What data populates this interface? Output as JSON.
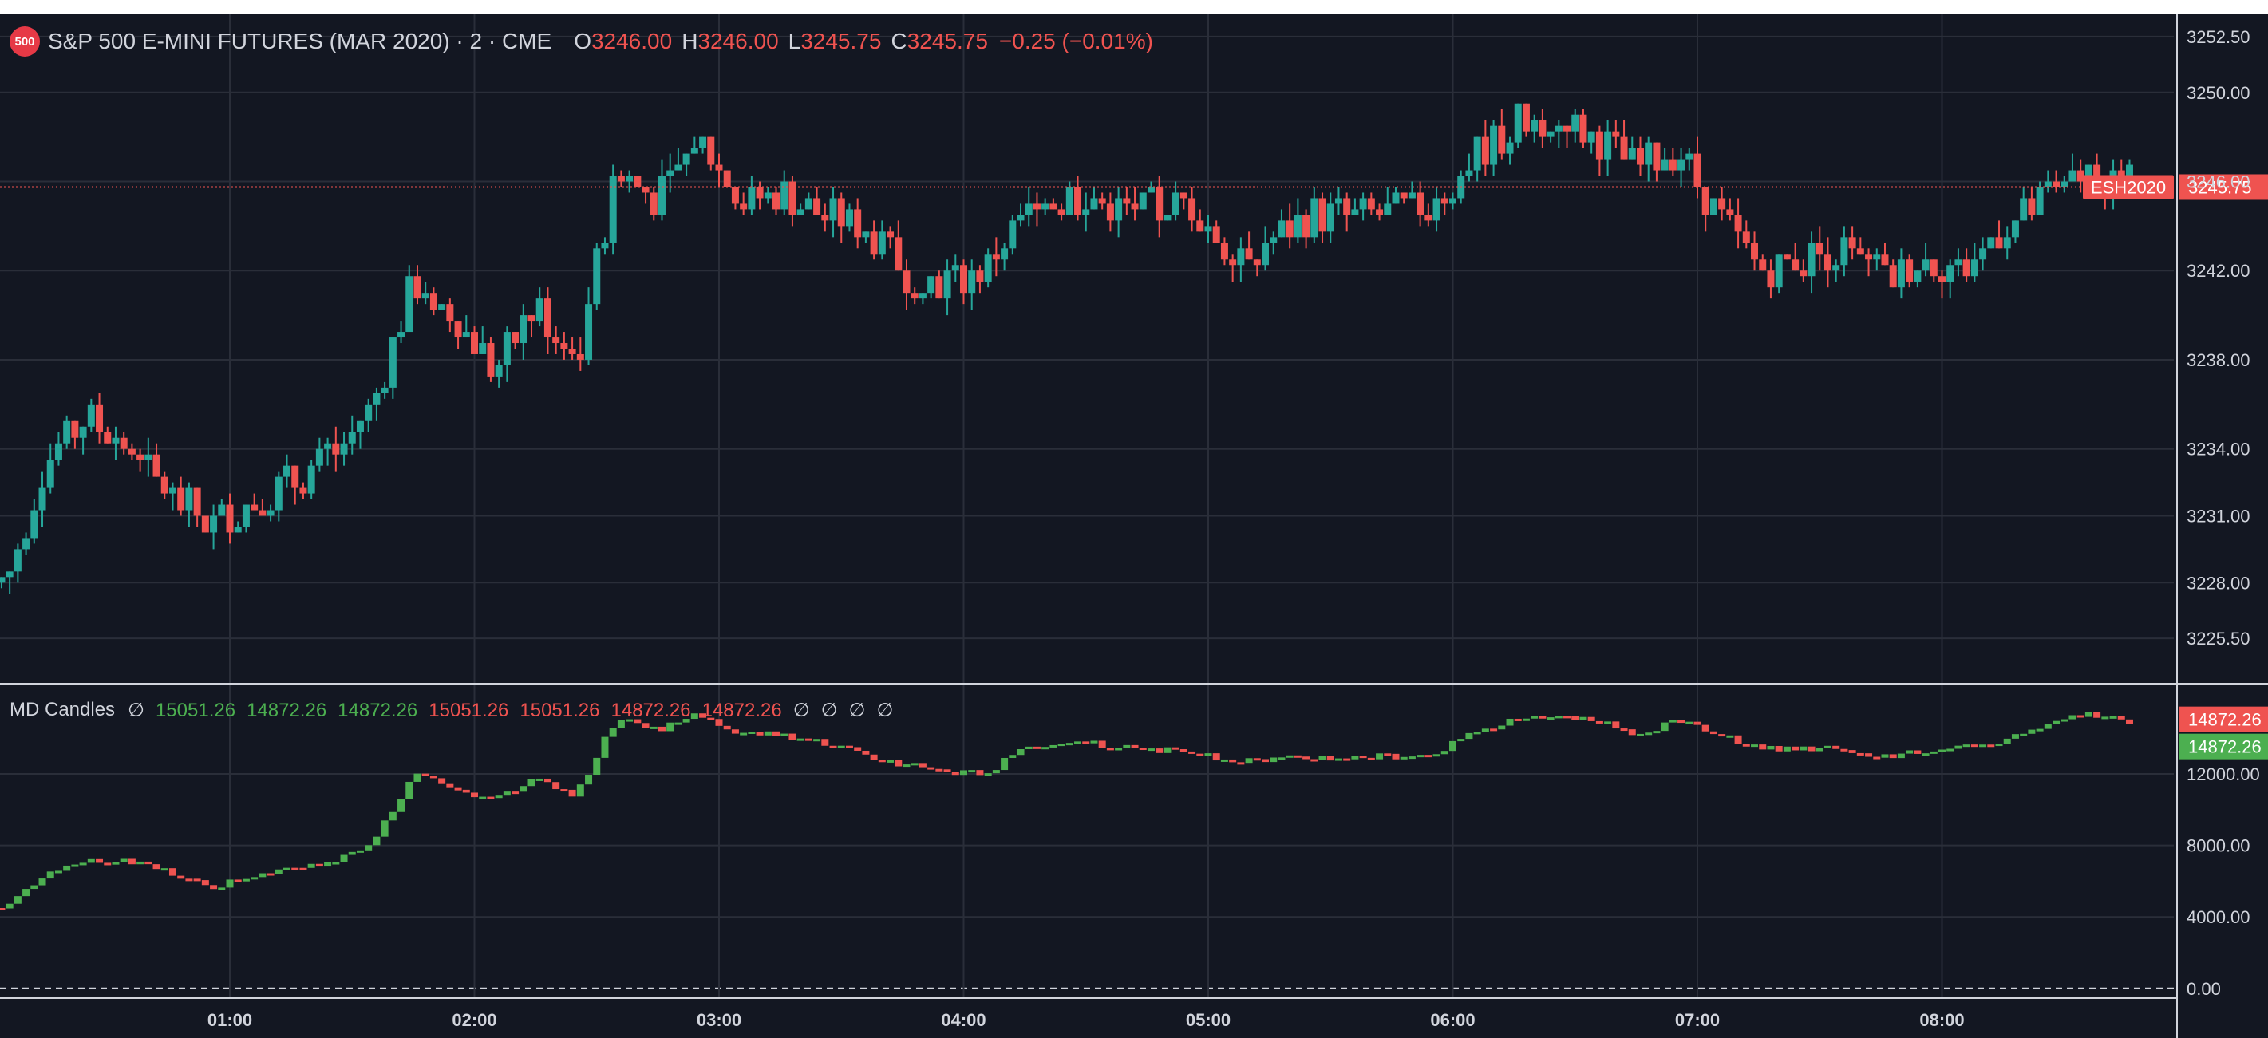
{
  "symbol": {
    "badge": "500",
    "title": "S&P 500 E-MINI FUTURES (MAR 2020) · 2 · CME",
    "ohlc": [
      {
        "key": "O",
        "value": "3246.00"
      },
      {
        "key": "H",
        "value": "3246.00"
      },
      {
        "key": "L",
        "value": "3245.75"
      },
      {
        "key": "C",
        "value": "3245.75"
      }
    ],
    "change": "−0.25 (−0.01%)",
    "ticker_badge": "ESH2020",
    "last_price_label": "3245.75"
  },
  "indicator": {
    "name": "MD Candles",
    "values": [
      {
        "text": "∅",
        "tone": "na"
      },
      {
        "text": "15051.26",
        "tone": "upg"
      },
      {
        "text": "14872.26",
        "tone": "upg"
      },
      {
        "text": "14872.26",
        "tone": "upg"
      },
      {
        "text": "15051.26",
        "tone": "dn"
      },
      {
        "text": "15051.26",
        "tone": "dn"
      },
      {
        "text": "14872.26",
        "tone": "dn"
      },
      {
        "text": "14872.26",
        "tone": "dn"
      },
      {
        "text": "∅",
        "tone": "na"
      },
      {
        "text": "∅",
        "tone": "na"
      },
      {
        "text": "∅",
        "tone": "na"
      },
      {
        "text": "∅",
        "tone": "na"
      }
    ],
    "last_labels": [
      {
        "text": "14872.26",
        "color": "#ef5350"
      },
      {
        "text": "14872.26",
        "color": "#4caf50"
      }
    ]
  },
  "colors": {
    "background": "#131722",
    "grid": "#2a2e39",
    "up": "#26a69a",
    "down": "#ef5350",
    "md_up": "#4caf50",
    "md_down": "#ef5350"
  },
  "chart_data": [
    {
      "type": "candlestick",
      "title": "S&P 500 E-MINI FUTURES (MAR 2020) · 2 · CME",
      "x_ticks": [
        "01:00",
        "02:00",
        "03:00",
        "04:00",
        "05:00",
        "06:00",
        "07:00",
        "08:00"
      ],
      "y_ticks": [
        "3252.50",
        "3250.00",
        "3246.00",
        "3242.00",
        "3238.00",
        "3234.00",
        "3231.00",
        "3228.00",
        "3225.50"
      ],
      "ylim": [
        3223.5,
        3253.5
      ],
      "last_price": 3245.75,
      "grid": true,
      "close_profile": [
        {
          "t": "00:05",
          "close": 3228.0
        },
        {
          "t": "00:15",
          "close": 3233.5
        },
        {
          "t": "00:25",
          "close": 3235.5
        },
        {
          "t": "00:35",
          "close": 3234.0
        },
        {
          "t": "00:45",
          "close": 3232.0
        },
        {
          "t": "00:55",
          "close": 3230.5
        },
        {
          "t": "01:05",
          "close": 3231.5
        },
        {
          "t": "01:15",
          "close": 3232.5
        },
        {
          "t": "01:25",
          "close": 3233.5
        },
        {
          "t": "01:35",
          "close": 3236.0
        },
        {
          "t": "01:45",
          "close": 3241.5
        },
        {
          "t": "01:55",
          "close": 3240.0
        },
        {
          "t": "02:05",
          "close": 3237.5
        },
        {
          "t": "02:15",
          "close": 3240.5
        },
        {
          "t": "02:25",
          "close": 3238.0
        },
        {
          "t": "02:35",
          "close": 3246.5
        },
        {
          "t": "02:45",
          "close": 3245.0
        },
        {
          "t": "02:55",
          "close": 3248.0
        },
        {
          "t": "03:05",
          "close": 3245.0
        },
        {
          "t": "03:15",
          "close": 3245.5
        },
        {
          "t": "03:25",
          "close": 3244.5
        },
        {
          "t": "03:35",
          "close": 3244.0
        },
        {
          "t": "03:45",
          "close": 3242.0
        },
        {
          "t": "03:55",
          "close": 3241.5
        },
        {
          "t": "04:05",
          "close": 3242.0
        },
        {
          "t": "04:15",
          "close": 3244.5
        },
        {
          "t": "04:25",
          "close": 3245.5
        },
        {
          "t": "04:35",
          "close": 3245.0
        },
        {
          "t": "04:45",
          "close": 3244.5
        },
        {
          "t": "04:55",
          "close": 3245.0
        },
        {
          "t": "05:05",
          "close": 3243.0
        },
        {
          "t": "05:15",
          "close": 3243.5
        },
        {
          "t": "05:25",
          "close": 3244.5
        },
        {
          "t": "05:35",
          "close": 3244.5
        },
        {
          "t": "05:45",
          "close": 3244.5
        },
        {
          "t": "05:55",
          "close": 3245.0
        },
        {
          "t": "06:05",
          "close": 3247.0
        },
        {
          "t": "06:15",
          "close": 3248.5
        },
        {
          "t": "06:25",
          "close": 3249.0
        },
        {
          "t": "06:35",
          "close": 3248.0
        },
        {
          "t": "06:45",
          "close": 3246.5
        },
        {
          "t": "06:55",
          "close": 3247.5
        },
        {
          "t": "07:05",
          "close": 3244.5
        },
        {
          "t": "07:15",
          "close": 3242.0
        },
        {
          "t": "07:25",
          "close": 3242.5
        },
        {
          "t": "07:35",
          "close": 3243.0
        },
        {
          "t": "07:45",
          "close": 3241.5
        },
        {
          "t": "07:55",
          "close": 3242.5
        },
        {
          "t": "08:05",
          "close": 3242.0
        },
        {
          "t": "08:15",
          "close": 3244.0
        },
        {
          "t": "08:25",
          "close": 3245.0
        },
        {
          "t": "08:35",
          "close": 3246.5
        },
        {
          "t": "08:45",
          "close": 3246.0
        }
      ]
    },
    {
      "type": "candlestick",
      "title": "MD Candles",
      "y_ticks": [
        "12000.00",
        "8000.00",
        "4000.00",
        "0.00"
      ],
      "ylim": [
        -500,
        17000
      ],
      "last_value": 14872.26,
      "grid": true,
      "close_profile": [
        {
          "t": "00:05",
          "value": 4500
        },
        {
          "t": "00:15",
          "value": 6500
        },
        {
          "t": "00:25",
          "value": 7200
        },
        {
          "t": "00:35",
          "value": 7100
        },
        {
          "t": "00:45",
          "value": 6600
        },
        {
          "t": "00:55",
          "value": 5600
        },
        {
          "t": "01:05",
          "value": 6300
        },
        {
          "t": "01:15",
          "value": 6900
        },
        {
          "t": "01:25",
          "value": 7000
        },
        {
          "t": "01:35",
          "value": 8000
        },
        {
          "t": "01:45",
          "value": 12000
        },
        {
          "t": "01:55",
          "value": 11200
        },
        {
          "t": "02:05",
          "value": 10500
        },
        {
          "t": "02:15",
          "value": 11800
        },
        {
          "t": "02:25",
          "value": 10800
        },
        {
          "t": "02:35",
          "value": 15200
        },
        {
          "t": "02:45",
          "value": 14500
        },
        {
          "t": "02:55",
          "value": 15400
        },
        {
          "t": "03:05",
          "value": 14300
        },
        {
          "t": "03:15",
          "value": 14200
        },
        {
          "t": "03:25",
          "value": 13800
        },
        {
          "t": "03:35",
          "value": 13200
        },
        {
          "t": "03:45",
          "value": 12500
        },
        {
          "t": "03:55",
          "value": 12200
        },
        {
          "t": "04:05",
          "value": 12000
        },
        {
          "t": "04:15",
          "value": 13400
        },
        {
          "t": "04:25",
          "value": 13900
        },
        {
          "t": "04:35",
          "value": 13600
        },
        {
          "t": "04:45",
          "value": 13300
        },
        {
          "t": "04:55",
          "value": 13400
        },
        {
          "t": "05:05",
          "value": 12700
        },
        {
          "t": "05:15",
          "value": 12800
        },
        {
          "t": "05:25",
          "value": 12900
        },
        {
          "t": "05:35",
          "value": 12900
        },
        {
          "t": "05:45",
          "value": 13000
        },
        {
          "t": "05:55",
          "value": 13100
        },
        {
          "t": "06:05",
          "value": 14200
        },
        {
          "t": "06:15",
          "value": 15000
        },
        {
          "t": "06:25",
          "value": 15100
        },
        {
          "t": "06:35",
          "value": 15000
        },
        {
          "t": "06:45",
          "value": 14300
        },
        {
          "t": "06:55",
          "value": 14900
        },
        {
          "t": "07:05",
          "value": 14300
        },
        {
          "t": "07:15",
          "value": 13400
        },
        {
          "t": "07:25",
          "value": 13400
        },
        {
          "t": "07:35",
          "value": 13500
        },
        {
          "t": "07:45",
          "value": 12900
        },
        {
          "t": "07:55",
          "value": 13300
        },
        {
          "t": "08:05",
          "value": 13400
        },
        {
          "t": "08:15",
          "value": 13900
        },
        {
          "t": "08:25",
          "value": 14600
        },
        {
          "t": "08:35",
          "value": 15400
        },
        {
          "t": "08:45",
          "value": 14900
        }
      ]
    }
  ]
}
